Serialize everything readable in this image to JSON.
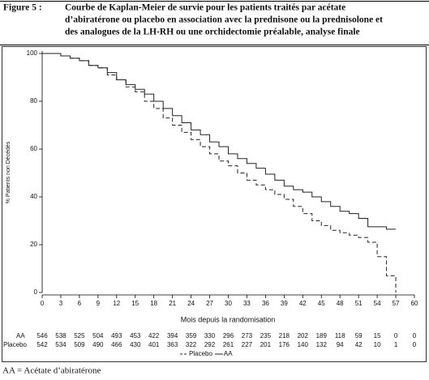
{
  "figure_label": "Figure 5 :",
  "caption_lines": [
    "Courbe de Kaplan-Meier de survie pour les patients traités par acétate",
    "d’abiratérone ou placebo en association avec la prednisone ou la prednisolone et",
    "des analogues de la LH-RH ou une orchidectomie préalable, analyse finale"
  ],
  "chart_data": {
    "type": "line",
    "step": true,
    "x_label": "Mois depuis la randomisation",
    "y_label": "% Patients non Décédés",
    "x": [
      0,
      1.5,
      3,
      4.5,
      6,
      7.5,
      9,
      10.5,
      12,
      13.5,
      15,
      16.5,
      18,
      19.5,
      21,
      22.5,
      24,
      25.5,
      27,
      28.5,
      30,
      31.5,
      33,
      34.5,
      36,
      37.5,
      39,
      40.5,
      42,
      43.5,
      45,
      46.5,
      48,
      49.5,
      51,
      52.5,
      54,
      55.5,
      57
    ],
    "series": [
      {
        "name": "Placebo",
        "color": "#222222",
        "dashed": true,
        "values": [
          100,
          100,
          99,
          98,
          97,
          95,
          94,
          91,
          89,
          86,
          84,
          80,
          77,
          73,
          70,
          67,
          64,
          61,
          58,
          55,
          53,
          50,
          47,
          45,
          43,
          41,
          39,
          36,
          33,
          30,
          28,
          26,
          25,
          24,
          23,
          21,
          15,
          7,
          0
        ]
      },
      {
        "name": "AA",
        "color": "#222222",
        "dashed": false,
        "values": [
          100,
          100,
          99,
          98,
          97,
          95,
          94,
          92,
          89,
          87,
          85,
          83,
          80,
          77,
          74,
          71,
          68,
          66,
          63,
          61,
          58,
          56,
          54,
          52,
          49.5,
          47,
          44.5,
          43,
          42,
          40,
          38,
          36,
          34,
          33,
          31,
          27.5,
          27.5,
          26.5,
          26.5
        ]
      }
    ],
    "xlim": [
      0,
      60
    ],
    "xticks": [
      0,
      3,
      6,
      9,
      12,
      15,
      18,
      21,
      24,
      27,
      30,
      33,
      36,
      39,
      42,
      45,
      48,
      51,
      54,
      57,
      60
    ],
    "ylim": [
      0,
      100
    ],
    "yticks": [
      0,
      20,
      40,
      60,
      80,
      100
    ],
    "legend": "bottom",
    "at_risk": [
      {
        "name": "AA",
        "values": [
          546,
          538,
          525,
          504,
          493,
          453,
          422,
          394,
          359,
          330,
          296,
          273,
          235,
          218,
          202,
          189,
          118,
          59,
          15,
          0,
          0
        ]
      },
      {
        "name": "Placebo",
        "values": [
          542,
          534,
          509,
          490,
          466,
          430,
          401,
          363,
          322,
          292,
          261,
          227,
          201,
          176,
          140,
          132,
          94,
          42,
          10,
          1,
          0
        ]
      }
    ]
  },
  "footnote": "AA = Acétate d’abiratérone"
}
